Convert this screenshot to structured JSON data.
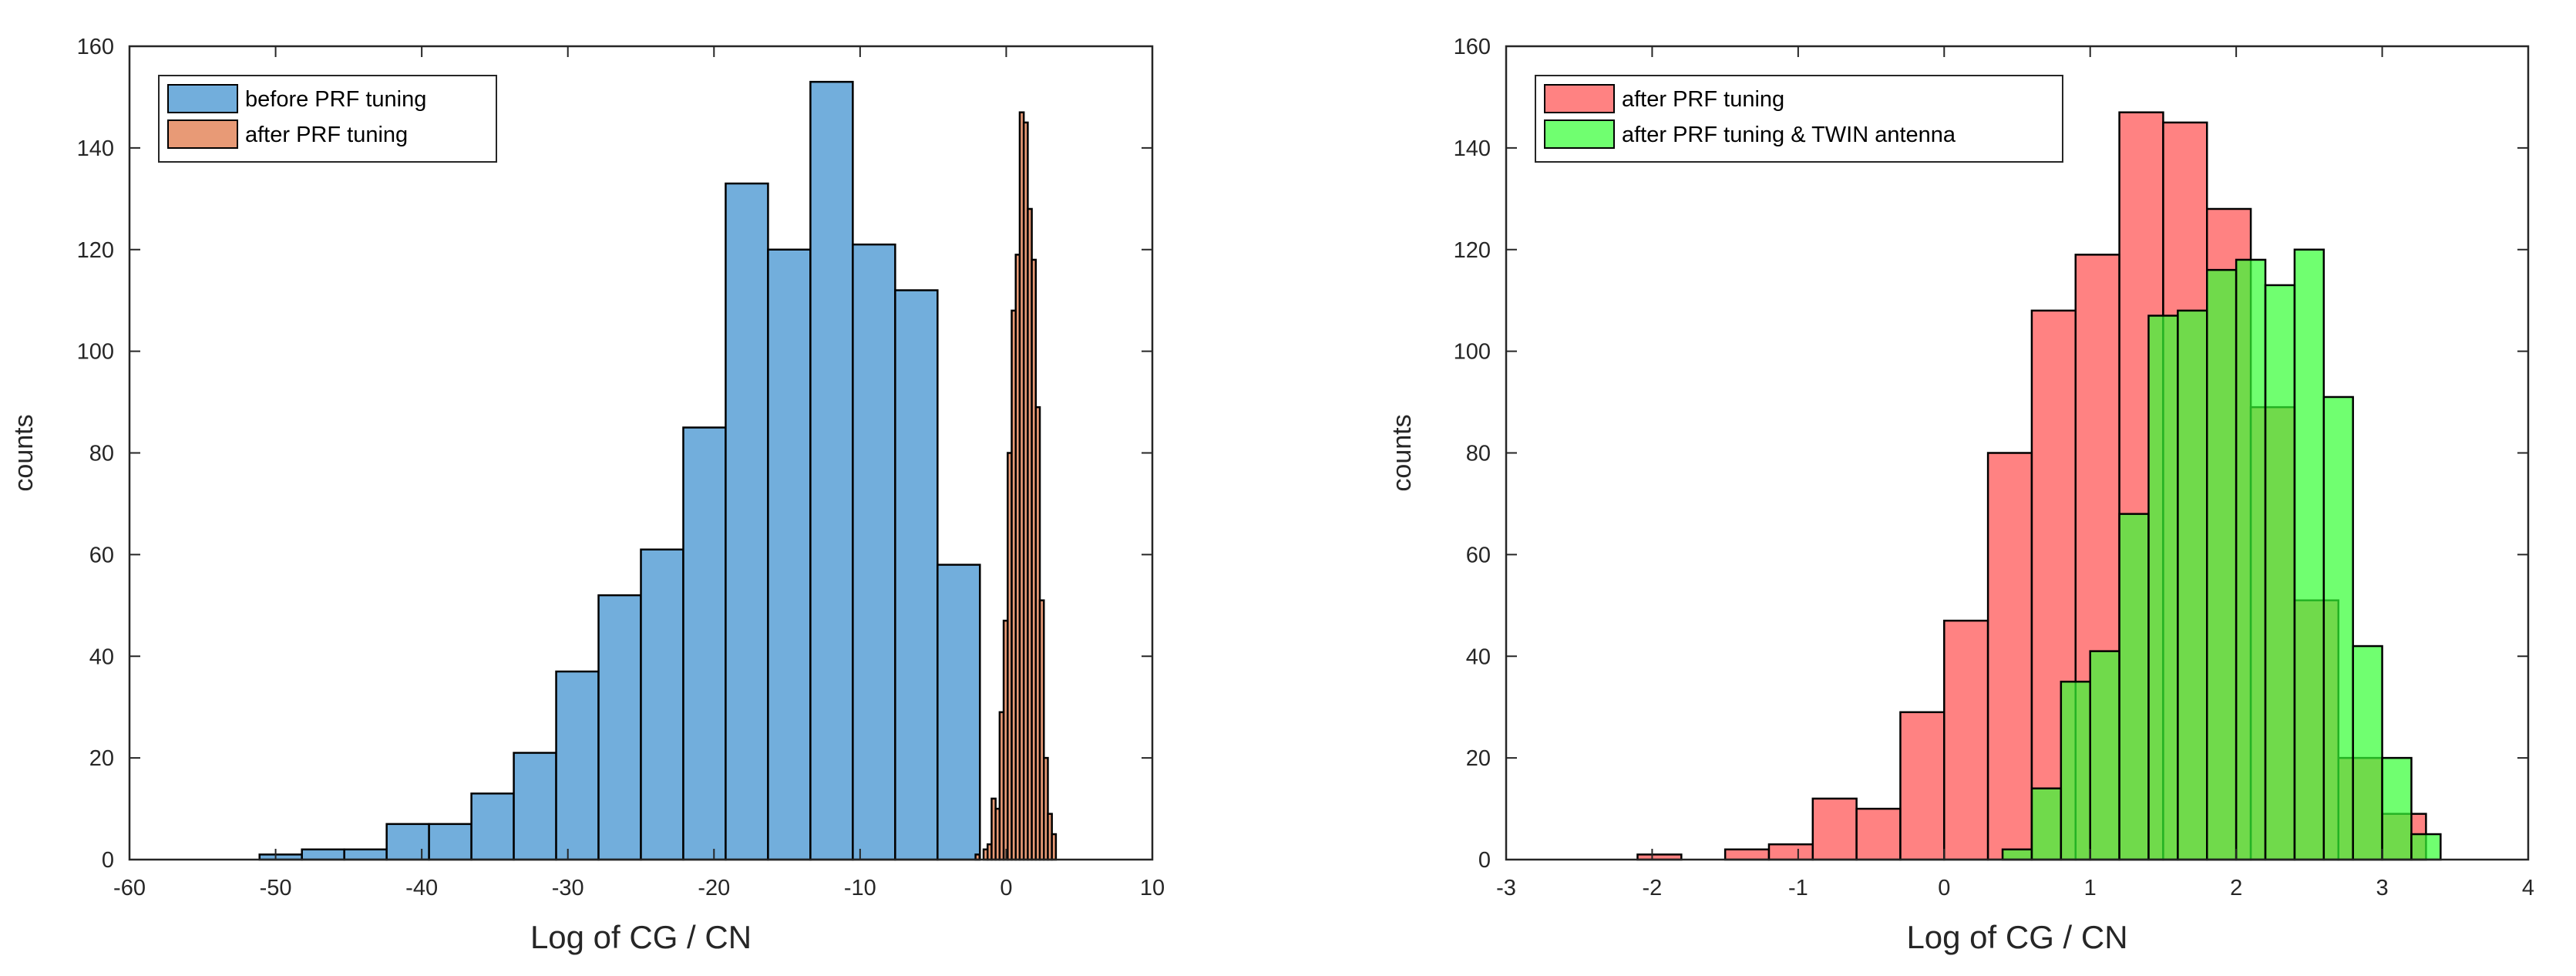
{
  "chart_data": [
    {
      "type": "histogram",
      "xlabel": "Log of CG / CN",
      "ylabel": "counts",
      "xlim": [
        -60,
        10
      ],
      "ylim": [
        0,
        160
      ],
      "xticks": [
        -60,
        -50,
        -40,
        -30,
        -20,
        -10,
        0,
        10
      ],
      "yticks": [
        0,
        20,
        40,
        60,
        80,
        100,
        120,
        140,
        160
      ],
      "grid": false,
      "legend_position": "top-left",
      "series": [
        {
          "name": "before PRF tuning",
          "color": "#72AEDC",
          "opacity": 1,
          "bin_edges": [
            -54,
            -51.1,
            -48.2,
            -45.3,
            -42.4,
            -39.5,
            -36.6,
            -33.7,
            -30.8,
            -27.9,
            -25,
            -22.1,
            -19.2,
            -16.3,
            -13.4,
            -10.5,
            -7.6,
            -4.7,
            -1.8,
            1.1
          ],
          "counts": [
            0,
            1,
            2,
            2,
            7,
            7,
            13,
            21,
            37,
            52,
            61,
            85,
            133,
            120,
            153,
            121,
            112,
            58,
            0
          ]
        },
        {
          "name": "after PRF tuning",
          "color": "#E89A76",
          "opacity": 1,
          "bin_edges": [
            -2.1,
            -1.825,
            -1.55,
            -1.275,
            -1.0,
            -0.725,
            -0.45,
            -0.175,
            0.1,
            0.375,
            0.65,
            0.925,
            1.2,
            1.475,
            1.75,
            2.025,
            2.3,
            2.575,
            2.85,
            3.125,
            3.4
          ],
          "counts": [
            1,
            0,
            2,
            3,
            12,
            10,
            29,
            47,
            80,
            108,
            119,
            147,
            145,
            128,
            118,
            89,
            51,
            20,
            9,
            5
          ]
        }
      ]
    },
    {
      "type": "histogram",
      "xlabel": "Log of CG / CN",
      "ylabel": "counts",
      "xlim": [
        -3,
        4
      ],
      "ylim": [
        0,
        160
      ],
      "xticks": [
        -3,
        -2,
        -1,
        0,
        1,
        2,
        3,
        4
      ],
      "yticks": [
        0,
        20,
        40,
        60,
        80,
        100,
        120,
        140,
        160
      ],
      "grid": false,
      "legend_position": "top-left",
      "series": [
        {
          "name": "after PRF tuning",
          "color": "#FF6666",
          "opacity": 0.82,
          "bin_edges": [
            -2.1,
            -1.8,
            -1.5,
            -1.2,
            -0.9,
            -0.6,
            -0.3,
            0.0,
            0.3,
            0.6,
            0.9,
            1.2,
            1.5,
            1.8,
            2.1,
            2.4,
            2.7,
            3.0,
            3.3
          ],
          "counts": [
            1,
            0,
            2,
            3,
            12,
            10,
            29,
            47,
            80,
            108,
            119,
            147,
            145,
            128,
            89,
            51,
            20,
            9
          ]
        },
        {
          "name": "after PRF tuning & TWIN antenna",
          "color": "#33FF33",
          "opacity": 0.7,
          "bin_edges": [
            0.4,
            0.6,
            0.8,
            1.0,
            1.2,
            1.4,
            1.6,
            1.8,
            2.0,
            2.2,
            2.4,
            2.6,
            2.8,
            3.0,
            3.2,
            3.4
          ],
          "counts": [
            2,
            14,
            35,
            41,
            68,
            107,
            108,
            116,
            118,
            113,
            120,
            91,
            42,
            20,
            5
          ]
        }
      ]
    }
  ]
}
